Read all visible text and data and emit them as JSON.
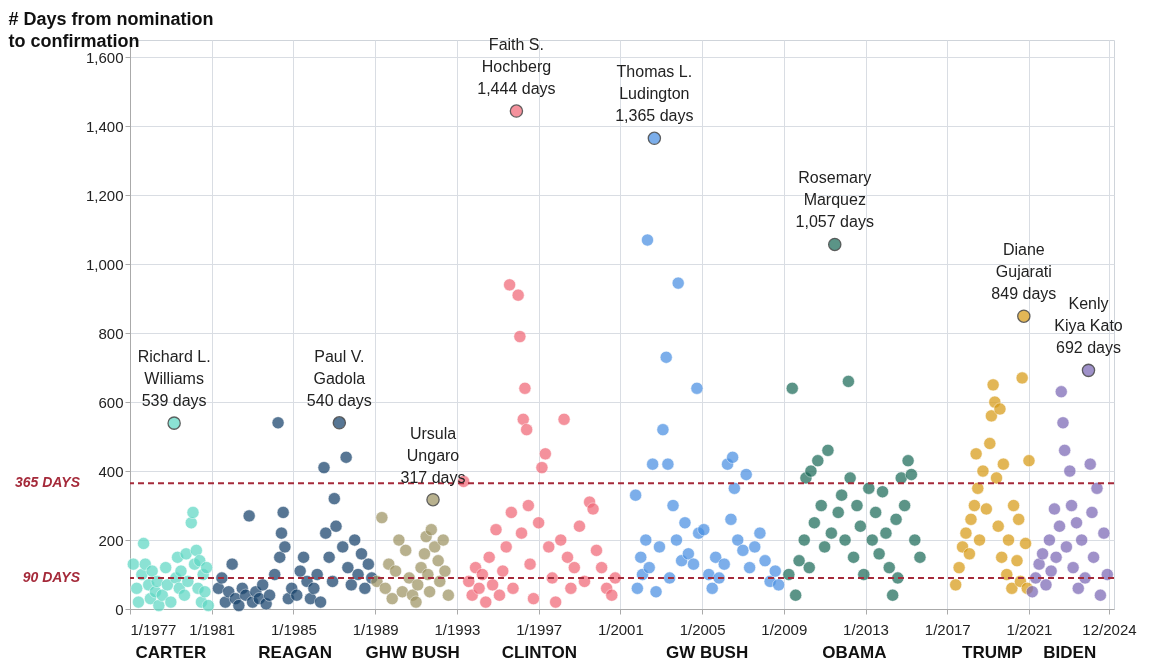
{
  "chart_data": {
    "type": "scatter",
    "ylabel": "# Days from nomination\nto confirmation",
    "xlim": [
      "1977-01",
      "2025-03"
    ],
    "xticks": [
      {
        "value": "1977-01",
        "label": "1/1977"
      },
      {
        "value": "1981-01",
        "label": "1/1981"
      },
      {
        "value": "1985-01",
        "label": "1/1985"
      },
      {
        "value": "1989-01",
        "label": "1/1989"
      },
      {
        "value": "1993-01",
        "label": "1/1993"
      },
      {
        "value": "1997-01",
        "label": "1/1997"
      },
      {
        "value": "2001-01",
        "label": "1/2001"
      },
      {
        "value": "2005-01",
        "label": "1/2005"
      },
      {
        "value": "2009-01",
        "label": "1/2009"
      },
      {
        "value": "2013-01",
        "label": "1/2013"
      },
      {
        "value": "2017-01",
        "label": "1/2017"
      },
      {
        "value": "2021-01",
        "label": "1/2021"
      },
      {
        "value": "2024-12",
        "label": "12/2024"
      }
    ],
    "ylim": [
      0,
      1650
    ],
    "yticks": [
      0,
      200,
      400,
      600,
      800,
      {
        "value": 1000,
        "label": "1,000"
      },
      {
        "value": 1200,
        "label": "1,200"
      },
      {
        "value": 1400,
        "label": "1,400"
      },
      {
        "value": 1600,
        "label": "1,600"
      }
    ],
    "grid": true,
    "legend": false,
    "marker": "circle",
    "series": [
      {
        "name": "CARTER",
        "color": "#5fd8c4",
        "x": [
          "1977-03",
          "1977-05",
          "1977-06",
          "1977-08",
          "1977-09",
          "1977-10",
          "1977-12",
          "1978-01",
          "1978-02",
          "1978-04",
          "1978-05",
          "1978-06",
          "1978-08",
          "1978-10",
          "1978-11",
          "1979-01",
          "1979-03",
          "1979-04",
          "1979-05",
          "1979-06",
          "1979-07",
          "1979-09",
          "1979-10",
          "1979-11",
          "1980-01",
          "1980-02",
          "1980-03",
          "1980-04",
          "1980-05",
          "1980-06",
          "1980-07",
          "1980-08",
          "1980-09",
          "1980-10",
          "1980-11"
        ],
        "values": [
          130,
          60,
          20,
          100,
          190,
          130,
          70,
          30,
          110,
          50,
          80,
          10,
          40,
          120,
          70,
          20,
          539,
          90,
          150,
          60,
          110,
          40,
          160,
          80,
          250,
          280,
          130,
          170,
          60,
          140,
          20,
          100,
          50,
          120,
          10
        ]
      },
      {
        "name": "REAGAN",
        "color": "#17426b",
        "x": [
          "1981-05",
          "1981-07",
          "1981-09",
          "1981-11",
          "1982-01",
          "1982-03",
          "1982-05",
          "1982-07",
          "1982-09",
          "1982-11",
          "1983-01",
          "1983-03",
          "1983-05",
          "1983-07",
          "1983-09",
          "1983-11",
          "1984-02",
          "1984-04",
          "1984-05",
          "1984-06",
          "1984-07",
          "1984-08",
          "1984-10",
          "1984-12",
          "1985-03",
          "1985-05",
          "1985-07",
          "1985-09",
          "1985-11",
          "1986-01",
          "1986-03",
          "1986-05",
          "1986-07",
          "1986-08",
          "1986-10",
          "1986-12",
          "1987-01",
          "1987-02",
          "1987-04",
          "1987-06",
          "1987-08",
          "1987-09",
          "1987-11",
          "1988-01",
          "1988-03",
          "1988-05",
          "1988-07",
          "1988-09",
          "1988-11"
        ],
        "values": [
          60,
          90,
          20,
          50,
          130,
          30,
          10,
          60,
          40,
          270,
          20,
          50,
          30,
          70,
          15,
          40,
          100,
          540,
          150,
          220,
          280,
          180,
          30,
          60,
          40,
          110,
          150,
          80,
          30,
          60,
          100,
          20,
          410,
          220,
          150,
          80,
          320,
          240,
          540,
          180,
          440,
          120,
          70,
          200,
          100,
          160,
          60,
          130,
          90
        ]
      },
      {
        "name": "GHW BUSH",
        "color": "#9e9464",
        "x": [
          "1989-02",
          "1989-05",
          "1989-07",
          "1989-09",
          "1989-11",
          "1990-01",
          "1990-03",
          "1990-05",
          "1990-07",
          "1990-09",
          "1990-11",
          "1991-01",
          "1991-02",
          "1991-04",
          "1991-06",
          "1991-07",
          "1991-08",
          "1991-09",
          "1991-10",
          "1991-11",
          "1991-12",
          "1992-02",
          "1992-03",
          "1992-05",
          "1992-06",
          "1992-08"
        ],
        "values": [
          80,
          265,
          60,
          130,
          30,
          110,
          200,
          50,
          170,
          90,
          40,
          20,
          70,
          120,
          160,
          210,
          100,
          50,
          230,
          317,
          180,
          140,
          80,
          200,
          110,
          40
        ]
      },
      {
        "name": "CLINTON",
        "color": "#f06877",
        "x": [
          "1993-05",
          "1993-08",
          "1993-10",
          "1993-12",
          "1994-02",
          "1994-04",
          "1994-06",
          "1994-08",
          "1994-10",
          "1994-12",
          "1995-02",
          "1995-04",
          "1995-06",
          "1995-08",
          "1995-09",
          "1995-10",
          "1995-12",
          "1996-01",
          "1996-02",
          "1996-03",
          "1996-04",
          "1996-05",
          "1996-06",
          "1996-07",
          "1996-08",
          "1996-10",
          "1997-01",
          "1997-03",
          "1997-05",
          "1997-07",
          "1997-09",
          "1997-11",
          "1998-02",
          "1998-04",
          "1998-06",
          "1998-08",
          "1998-10",
          "1999-01",
          "1999-04",
          "1999-07",
          "1999-09",
          "1999-11",
          "2000-02",
          "2000-05",
          "2000-08",
          "2000-10"
        ],
        "values": [
          370,
          80,
          40,
          120,
          60,
          100,
          20,
          150,
          70,
          230,
          40,
          110,
          180,
          940,
          280,
          60,
          1444,
          910,
          790,
          220,
          550,
          640,
          520,
          300,
          130,
          30,
          250,
          410,
          450,
          180,
          90,
          20,
          200,
          550,
          150,
          60,
          120,
          240,
          80,
          310,
          290,
          170,
          120,
          60,
          40,
          90
        ]
      },
      {
        "name": "GW BUSH",
        "color": "#4a90e2",
        "x": [
          "2001-10",
          "2001-11",
          "2002-01",
          "2002-02",
          "2002-04",
          "2002-05",
          "2002-06",
          "2002-08",
          "2002-09",
          "2002-10",
          "2002-12",
          "2003-02",
          "2003-04",
          "2003-05",
          "2003-06",
          "2003-08",
          "2003-10",
          "2003-11",
          "2004-01",
          "2004-03",
          "2004-05",
          "2004-08",
          "2004-10",
          "2004-11",
          "2005-02",
          "2005-05",
          "2005-07",
          "2005-09",
          "2005-11",
          "2006-02",
          "2006-04",
          "2006-06",
          "2006-07",
          "2006-08",
          "2006-10",
          "2007-01",
          "2007-03",
          "2007-05",
          "2007-08",
          "2007-11",
          "2008-02",
          "2008-05",
          "2008-08",
          "2008-10"
        ],
        "values": [
          330,
          60,
          150,
          100,
          200,
          1070,
          120,
          420,
          1365,
          50,
          180,
          520,
          730,
          420,
          90,
          300,
          200,
          945,
          140,
          250,
          160,
          130,
          640,
          220,
          230,
          100,
          60,
          150,
          90,
          130,
          420,
          260,
          440,
          350,
          200,
          170,
          390,
          120,
          180,
          220,
          140,
          80,
          110,
          70
        ]
      },
      {
        "name": "OBAMA",
        "color": "#1d6b5a",
        "x": [
          "2009-04",
          "2009-06",
          "2009-08",
          "2009-10",
          "2010-01",
          "2010-02",
          "2010-04",
          "2010-05",
          "2010-07",
          "2010-09",
          "2010-11",
          "2011-01",
          "2011-03",
          "2011-05",
          "2011-07",
          "2011-09",
          "2011-11",
          "2012-01",
          "2012-03",
          "2012-04",
          "2012-06",
          "2012-08",
          "2012-10",
          "2012-12",
          "2013-03",
          "2013-05",
          "2013-07",
          "2013-09",
          "2013-11",
          "2014-01",
          "2014-03",
          "2014-05",
          "2014-07",
          "2014-08",
          "2014-10",
          "2014-12",
          "2015-02",
          "2015-04",
          "2015-06",
          "2015-09"
        ],
        "values": [
          100,
          640,
          40,
          140,
          200,
          380,
          120,
          400,
          250,
          430,
          300,
          180,
          460,
          220,
          1057,
          280,
          330,
          200,
          660,
          380,
          150,
          300,
          240,
          100,
          350,
          200,
          280,
          160,
          340,
          220,
          120,
          40,
          260,
          90,
          380,
          300,
          430,
          390,
          200,
          150
        ]
      },
      {
        "name": "TRUMP",
        "color": "#d89b16",
        "x": [
          "2017-06",
          "2017-08",
          "2017-10",
          "2017-12",
          "2018-02",
          "2018-03",
          "2018-05",
          "2018-06",
          "2018-07",
          "2018-08",
          "2018-10",
          "2018-12",
          "2019-02",
          "2019-03",
          "2019-04",
          "2019-05",
          "2019-06",
          "2019-07",
          "2019-08",
          "2019-09",
          "2019-10",
          "2019-12",
          "2020-01",
          "2020-03",
          "2020-04",
          "2020-06",
          "2020-07",
          "2020-08",
          "2020-09",
          "2020-10",
          "2020-11",
          "2020-12",
          "2021-01"
        ],
        "values": [
          70,
          120,
          180,
          220,
          160,
          260,
          300,
          450,
          350,
          200,
          400,
          290,
          480,
          560,
          650,
          600,
          380,
          240,
          580,
          150,
          420,
          100,
          200,
          60,
          300,
          140,
          260,
          80,
          670,
          849,
          190,
          60,
          430
        ]
      },
      {
        "name": "BIDEN",
        "color": "#7b68b5",
        "x": [
          "2021-03",
          "2021-05",
          "2021-07",
          "2021-09",
          "2021-11",
          "2022-01",
          "2022-02",
          "2022-04",
          "2022-05",
          "2022-07",
          "2022-08",
          "2022-09",
          "2022-10",
          "2022-11",
          "2023-01",
          "2023-02",
          "2023-03",
          "2023-05",
          "2023-06",
          "2023-08",
          "2023-10",
          "2023-12",
          "2024-01",
          "2024-02",
          "2024-03",
          "2024-05",
          "2024-07",
          "2024-09",
          "2024-11"
        ],
        "values": [
          50,
          90,
          130,
          160,
          70,
          200,
          110,
          290,
          150,
          240,
          630,
          540,
          460,
          180,
          400,
          300,
          120,
          250,
          60,
          200,
          90,
          692,
          420,
          280,
          150,
          350,
          40,
          220,
          100
        ]
      }
    ],
    "ref_lines": [
      {
        "axis": "y",
        "value": 365,
        "label": "365 DAYS",
        "color": "#a52a3a",
        "line_style": "dashed"
      },
      {
        "axis": "y",
        "value": 90,
        "label": "90 DAYS",
        "color": "#a52a3a",
        "line_style": "dashed"
      }
    ],
    "annotations": [
      {
        "text": "Richard L.\nWilliams\n539 days",
        "x": "1979-03",
        "y": 539
      },
      {
        "text": "Paul V.\nGadola\n540 days",
        "x": "1987-04",
        "y": 540
      },
      {
        "text": "Ursula\nUngaro\n317 days",
        "x": "1991-11",
        "y": 317
      },
      {
        "text": "Faith S.\nHochberg\n1,444 days",
        "x": "1995-12",
        "y": 1444
      },
      {
        "text": "Thomas L.\nLudington\n1,365 days",
        "x": "2002-09",
        "y": 1365
      },
      {
        "text": "Rosemary\nMarquez\n1,057 days",
        "x": "2011-07",
        "y": 1057
      },
      {
        "text": "Diane\nGujarati\n849 days",
        "x": "2020-10",
        "y": 849
      },
      {
        "text": "Kenly\nKiya Kato\n692 days",
        "x": "2023-12",
        "y": 692
      }
    ]
  }
}
